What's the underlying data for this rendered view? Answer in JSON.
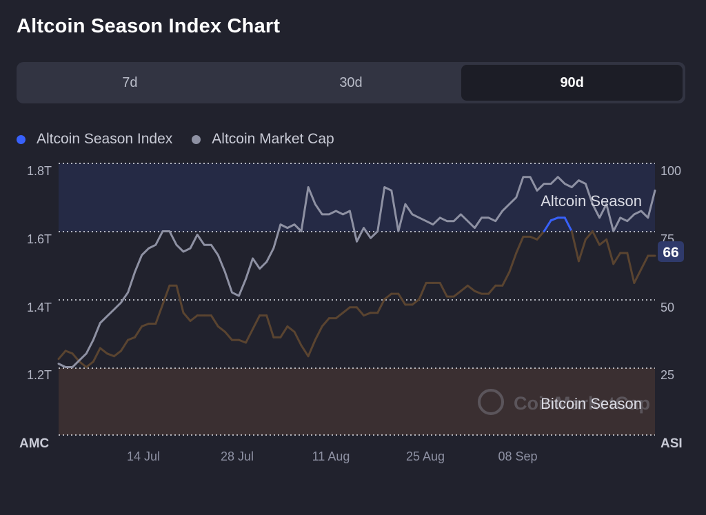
{
  "header": {
    "title": "Altcoin Season Index Chart"
  },
  "tabs": [
    {
      "label": "7d",
      "active": false
    },
    {
      "label": "30d",
      "active": false
    },
    {
      "label": "90d",
      "active": true
    }
  ],
  "legend": [
    {
      "label": "Altcoin Season Index",
      "color": "#3861fb"
    },
    {
      "label": "Altcoin Market Cap",
      "color": "#8e91a3"
    }
  ],
  "axis": {
    "left_title": "AMC",
    "right_title": "ASI",
    "left_ticks": [
      "1.8T",
      "1.6T",
      "1.4T",
      "1.2T"
    ],
    "right_ticks": [
      "100",
      "75",
      "50",
      "25"
    ],
    "x_ticks": [
      "14 Jul",
      "28 Jul",
      "11 Aug",
      "25 Aug",
      "08 Sep"
    ]
  },
  "zones": {
    "altcoin_label": "Altcoin Season",
    "bitcoin_label": "Bitcoin Season"
  },
  "watermark": "CoinMarketCap",
  "current_badge": "66",
  "colors": {
    "altcoin_zone": "#252a45",
    "bitcoin_zone": "#3a2f31",
    "index_neutral": "#5a4430",
    "index_bitcoin": "#f7931a",
    "index_altcoin": "#3861fb",
    "market_cap": "#8e91a3",
    "badge": "#2f3a6b"
  },
  "chart_data": {
    "type": "line",
    "x_axis": "date",
    "x_range": [
      "2024-07-01",
      "2024-09-28"
    ],
    "x_ticks_dates": [
      "2024-07-14",
      "2024-07-28",
      "2024-08-11",
      "2024-08-25",
      "2024-09-08"
    ],
    "left_axis": {
      "label": "AMC",
      "unit": "T",
      "ylim": [
        1.0,
        1.8
      ]
    },
    "right_axis": {
      "label": "ASI",
      "ylim": [
        0,
        100
      ],
      "thresholds": [
        25,
        75
      ]
    },
    "series": [
      {
        "name": "Altcoin Season Index",
        "axis": "right",
        "values": [
          28,
          31,
          30,
          27,
          25,
          27,
          32,
          30,
          29,
          31,
          35,
          36,
          40,
          41,
          41,
          48,
          55,
          55,
          45,
          42,
          44,
          44,
          44,
          40,
          38,
          35,
          35,
          34,
          39,
          44,
          44,
          36,
          36,
          40,
          38,
          33,
          29,
          35,
          40,
          43,
          43,
          45,
          47,
          47,
          44,
          45,
          45,
          50,
          52,
          52,
          48,
          48,
          50,
          56,
          56,
          56,
          51,
          51,
          53,
          55,
          53,
          52,
          52,
          55,
          55,
          60,
          67,
          73,
          73,
          72,
          75,
          79,
          80,
          80,
          75,
          64,
          72,
          75,
          70,
          72,
          63,
          67,
          67,
          56,
          61,
          66,
          66
        ]
      },
      {
        "name": "Altcoin Market Cap",
        "axis": "left",
        "values": [
          1.21,
          1.2,
          1.2,
          1.22,
          1.24,
          1.28,
          1.33,
          1.35,
          1.37,
          1.39,
          1.42,
          1.48,
          1.53,
          1.55,
          1.56,
          1.6,
          1.6,
          1.56,
          1.54,
          1.55,
          1.59,
          1.56,
          1.56,
          1.53,
          1.48,
          1.42,
          1.41,
          1.46,
          1.52,
          1.49,
          1.51,
          1.55,
          1.62,
          1.61,
          1.62,
          1.6,
          1.73,
          1.68,
          1.65,
          1.65,
          1.66,
          1.65,
          1.66,
          1.57,
          1.61,
          1.58,
          1.6,
          1.73,
          1.72,
          1.6,
          1.68,
          1.65,
          1.64,
          1.63,
          1.62,
          1.64,
          1.63,
          1.63,
          1.65,
          1.63,
          1.61,
          1.64,
          1.64,
          1.63,
          1.66,
          1.68,
          1.7,
          1.76,
          1.76,
          1.72,
          1.74,
          1.74,
          1.76,
          1.74,
          1.73,
          1.75,
          1.74,
          1.68,
          1.64,
          1.68,
          1.6,
          1.64,
          1.63,
          1.65,
          1.66,
          1.64,
          1.72
        ]
      }
    ]
  }
}
